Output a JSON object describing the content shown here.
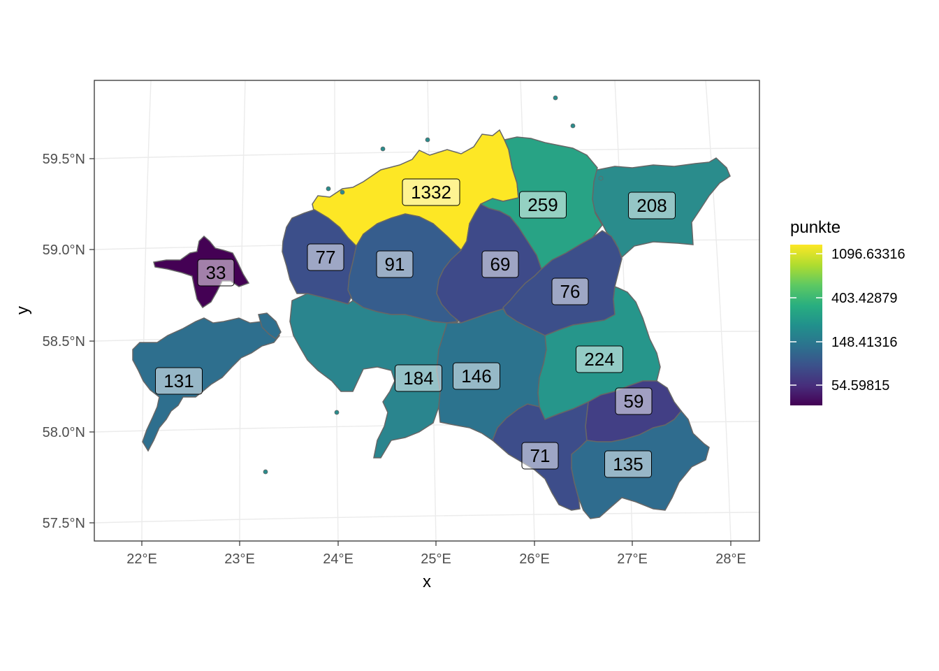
{
  "chart_data": {
    "type": "choropleth",
    "xlabel": "x",
    "ylabel": "y",
    "x_ticks": [
      "22°E",
      "23°E",
      "24°E",
      "25°E",
      "26°E",
      "27°E",
      "28°E"
    ],
    "y_ticks": [
      "59.5°N",
      "59.0°N",
      "58.5°N",
      "58.0°N",
      "57.5°N"
    ],
    "xlim": [
      21.5,
      28.3
    ],
    "ylim": [
      57.4,
      59.85
    ],
    "grid": true,
    "legend": {
      "title": "punkte",
      "position": "right",
      "scale": "log",
      "colormap": "viridis",
      "labels": [
        "1096.63316",
        "403.42879",
        "148.41316",
        "54.59815"
      ],
      "range": [
        33,
        1332
      ]
    },
    "regions": [
      {
        "id": "harju",
        "value": 1332,
        "label": "1332",
        "color": "#FDE725"
      },
      {
        "id": "ida-viru",
        "value": 208,
        "label": "208",
        "color": "#2A8C8C"
      },
      {
        "id": "laane-viru",
        "value": 259,
        "label": "259",
        "color": "#28A385"
      },
      {
        "id": "hiiu",
        "value": 33,
        "label": "33",
        "color": "#440154"
      },
      {
        "id": "laane",
        "value": 77,
        "label": "77",
        "color": "#3C4F8A"
      },
      {
        "id": "rapla",
        "value": 91,
        "label": "91",
        "color": "#365D8D"
      },
      {
        "id": "jarva",
        "value": 69,
        "label": "69",
        "color": "#3E4A89"
      },
      {
        "id": "jogeva",
        "value": 76,
        "label": "76",
        "color": "#3C4F8A"
      },
      {
        "id": "saare",
        "value": 131,
        "label": "131",
        "color": "#2E6F8E"
      },
      {
        "id": "parnu",
        "value": 184,
        "label": "184",
        "color": "#2A858E"
      },
      {
        "id": "viljandi",
        "value": 146,
        "label": "146",
        "color": "#2C738E"
      },
      {
        "id": "tartu",
        "value": 224,
        "label": "224",
        "color": "#26968B"
      },
      {
        "id": "polva",
        "value": 59,
        "label": "59",
        "color": "#423F85"
      },
      {
        "id": "valga",
        "value": 71,
        "label": "71",
        "color": "#3D4D8A"
      },
      {
        "id": "voru",
        "value": 135,
        "label": "135",
        "color": "#2F6C8E"
      }
    ]
  }
}
